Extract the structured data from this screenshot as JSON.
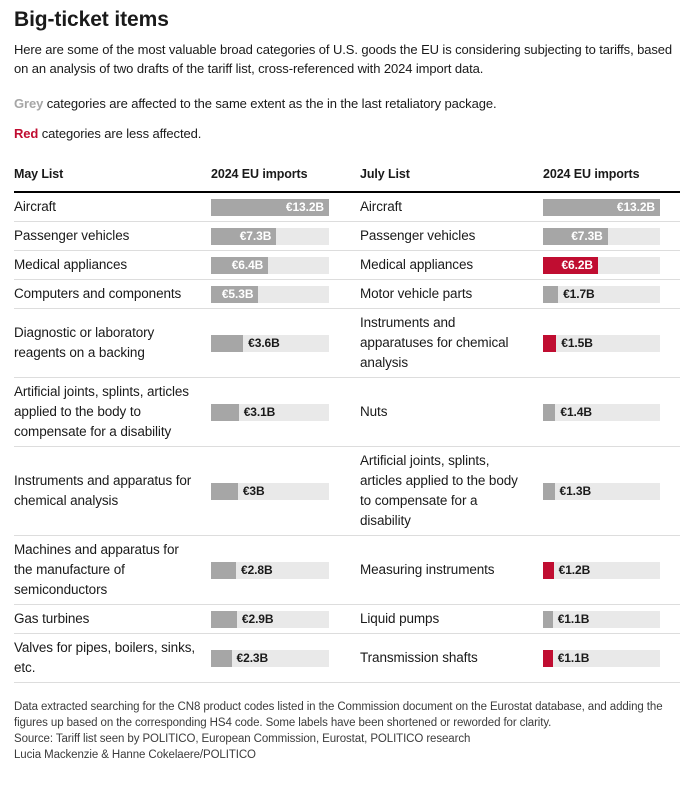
{
  "page": {
    "title": "Big-ticket items",
    "intro": "Here are some of the most valuable broad categories of U.S. goods the EU is considering subjecting to tariffs, based on an analysis of two drafts of the tariff list, cross-referenced with 2024 import data."
  },
  "legend": {
    "grey_term": "Grey",
    "grey_text": " categories are affected to the same extent as the in the last retaliatory package.",
    "red_term": "Red",
    "red_text": " categories are less affected."
  },
  "colors": {
    "grey_bar": "#a6a6a6",
    "red_bar": "#c00d31",
    "bar_track": "#e9e9e9",
    "grey_term": "#a6a6a6",
    "red_term": "#c00d31"
  },
  "header": {
    "col1": "May List",
    "col2": "2024 EU imports",
    "col3": "July List",
    "col4": "2024 EU imports"
  },
  "chart_data": {
    "type": "bar",
    "title": "Big-ticket items",
    "value_unit": "2024 EU imports, billions of euros",
    "xlim": [
      0,
      13.2
    ],
    "legend": {
      "grey": "categories are affected to the same extent as the in the last retaliatory package",
      "red": "categories are less affected"
    },
    "series": [
      {
        "name": "May List",
        "items": [
          {
            "label": "Aircraft",
            "value": 13.2,
            "display": "€13.2B",
            "color": "grey",
            "label_inside": true
          },
          {
            "label": "Passenger vehicles",
            "value": 7.3,
            "display": "€7.3B",
            "color": "grey",
            "label_inside": true
          },
          {
            "label": "Medical appliances",
            "value": 6.4,
            "display": "€6.4B",
            "color": "grey",
            "label_inside": true
          },
          {
            "label": "Computers and components",
            "value": 5.3,
            "display": "€5.3B",
            "color": "grey",
            "label_inside": true
          },
          {
            "label": "Diagnostic or laboratory reagents on a backing",
            "value": 3.6,
            "display": "€3.6B",
            "color": "grey",
            "label_inside": false
          },
          {
            "label": "Artificial joints, splints, articles applied to the body to compensate for a disability",
            "value": 3.1,
            "display": "€3.1B",
            "color": "grey",
            "label_inside": false
          },
          {
            "label": "Instruments and apparatus for chemical analysis",
            "value": 3.0,
            "display": "€3B",
            "color": "grey",
            "label_inside": false
          },
          {
            "label": "Machines and apparatus for the manufacture of semiconductors",
            "value": 2.8,
            "display": "€2.8B",
            "color": "grey",
            "label_inside": false
          },
          {
            "label": "Gas turbines",
            "value": 2.9,
            "display": "€2.9B",
            "color": "grey",
            "label_inside": false
          },
          {
            "label": "Valves for pipes, boilers, sinks, etc.",
            "value": 2.3,
            "display": "€2.3B",
            "color": "grey",
            "label_inside": false
          }
        ]
      },
      {
        "name": "July List",
        "items": [
          {
            "label": "Aircraft",
            "value": 13.2,
            "display": "€13.2B",
            "color": "grey",
            "label_inside": true
          },
          {
            "label": "Passenger vehicles",
            "value": 7.3,
            "display": "€7.3B",
            "color": "grey",
            "label_inside": true
          },
          {
            "label": "Medical appliances",
            "value": 6.2,
            "display": "€6.2B",
            "color": "red",
            "label_inside": true
          },
          {
            "label": "Motor vehicle parts",
            "value": 1.7,
            "display": "€1.7B",
            "color": "grey",
            "label_inside": false
          },
          {
            "label": "Instruments and apparatuses for chemical analysis",
            "value": 1.5,
            "display": "€1.5B",
            "color": "red",
            "label_inside": false
          },
          {
            "label": "Nuts",
            "value": 1.4,
            "display": "€1.4B",
            "color": "grey",
            "label_inside": false
          },
          {
            "label": "Artificial joints, splints, articles applied to the body to compensate for a disability",
            "value": 1.3,
            "display": "€1.3B",
            "color": "grey",
            "label_inside": false
          },
          {
            "label": "Measuring instruments",
            "value": 1.2,
            "display": "€1.2B",
            "color": "red",
            "label_inside": false
          },
          {
            "label": "Liquid pumps",
            "value": 1.1,
            "display": "€1.1B",
            "color": "grey",
            "label_inside": false
          },
          {
            "label": "Transmission shafts",
            "value": 1.1,
            "display": "€1.1B",
            "color": "red",
            "label_inside": false
          }
        ]
      }
    ]
  },
  "footer": {
    "note": "Data extracted searching for the CN8 product codes listed in the Commission document on the Eurostat database, and adding the figures up based on the corresponding HS4 code. Some labels have been shortened or reworded for clarity.",
    "source": "Source: Tariff list seen by POLITICO, European Commission, Eurostat, POLITICO research",
    "byline": "Lucia Mackenzie & Hanne Cokelaere/POLITICO"
  }
}
